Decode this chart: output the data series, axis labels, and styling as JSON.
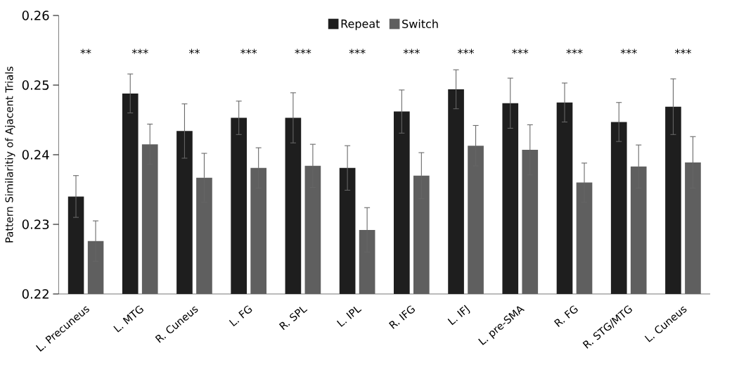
{
  "chart_data": {
    "type": "bar",
    "ylabel": "Pattern Similaritiy of Ajacent Trials",
    "categories": [
      "L. Precuneus",
      "L. MTG",
      "R. Cuneus",
      "L. FG",
      "R. SPL",
      "L. IPL",
      "R. IFG",
      "L. IFJ",
      "L. pre-SMA",
      "R. FG",
      "R. STG/MTG",
      "L. Cuneus"
    ],
    "series": [
      {
        "name": "Repeat",
        "color": "#1e1e1e",
        "values": [
          0.234,
          0.2488,
          0.2434,
          0.2453,
          0.2453,
          0.2381,
          0.2462,
          0.2494,
          0.2474,
          0.2475,
          0.2447,
          0.2469
        ],
        "errors": [
          0.003,
          0.0028,
          0.0039,
          0.0024,
          0.0036,
          0.0032,
          0.0031,
          0.0028,
          0.0036,
          0.0028,
          0.0028,
          0.004
        ]
      },
      {
        "name": "Switch",
        "color": "#5f5f5f",
        "values": [
          0.2276,
          0.2415,
          0.2367,
          0.2381,
          0.2384,
          0.2292,
          0.237,
          0.2413,
          0.2407,
          0.236,
          0.2383,
          0.2389
        ],
        "errors": [
          0.0029,
          0.0029,
          0.0035,
          0.0029,
          0.0031,
          0.0032,
          0.0033,
          0.0029,
          0.0036,
          0.0028,
          0.0031,
          0.0037
        ]
      }
    ],
    "ylim": [
      0.22,
      0.26
    ],
    "yticks": [
      0.22,
      0.23,
      0.24,
      0.25,
      0.26
    ],
    "legend": "top",
    "annotations": [
      "**",
      "***",
      "**",
      "***",
      "***",
      "***",
      "***",
      "***",
      "***",
      "***",
      "***",
      "***"
    ]
  }
}
